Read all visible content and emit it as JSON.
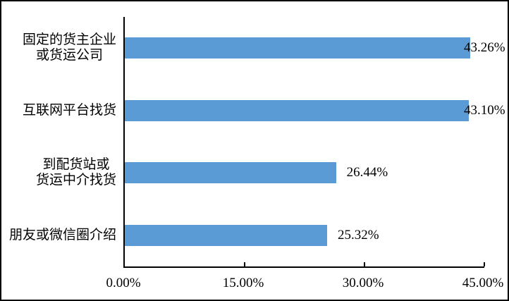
{
  "chart_data": {
    "type": "bar",
    "orientation": "horizontal",
    "title": "",
    "xlabel": "",
    "ylabel": "",
    "categories": [
      "固定的货主企业\n或货运公司",
      "互联网平台找货",
      "到配货站或\n货运中介找货",
      "朋友或微信圈介绍"
    ],
    "values": [
      43.26,
      43.1,
      26.44,
      25.32
    ],
    "value_labels": [
      "43.26%",
      "43.10%",
      "26.44%",
      "25.32%"
    ],
    "x_tick_values": [
      0,
      15,
      30,
      45
    ],
    "x_tick_labels": [
      "0.00%",
      "15.00%",
      "30.00%",
      "45.00%"
    ],
    "xlim": [
      0,
      45
    ],
    "grid": false,
    "legend": false,
    "bar_color": "#5B9BD5",
    "axis_color": "#000000",
    "text_color": "#000000",
    "background_color": "#ffffff"
  }
}
